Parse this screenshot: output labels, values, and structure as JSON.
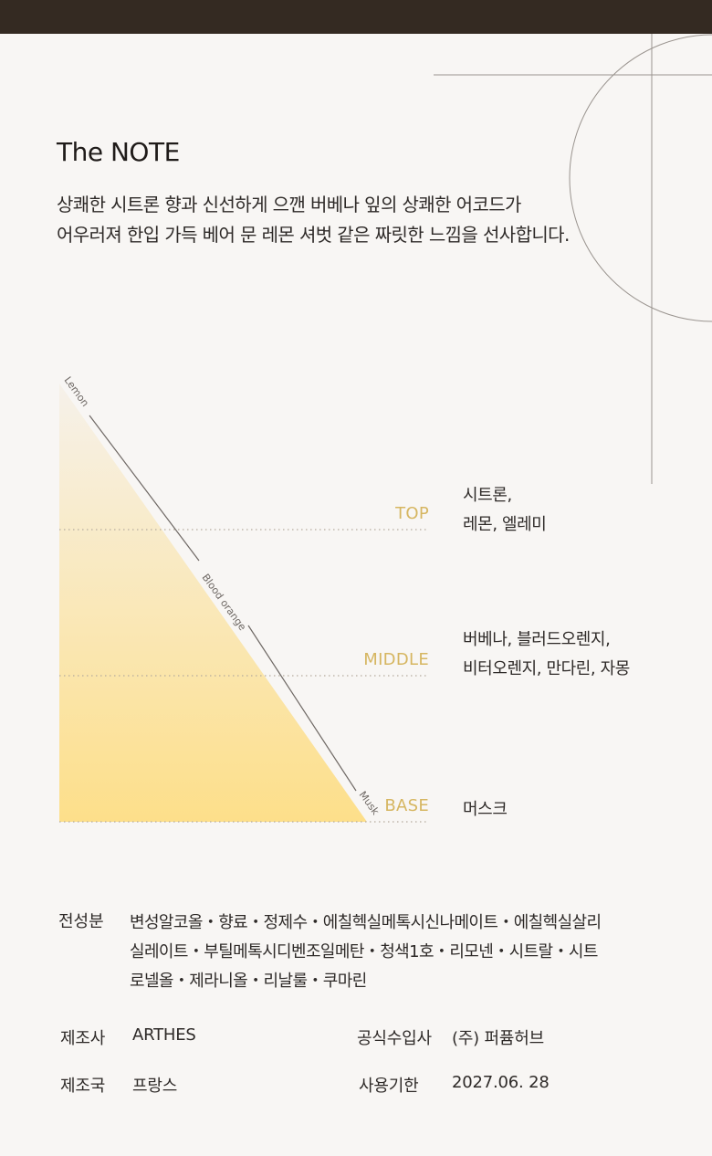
{
  "header": {
    "bar_color": "#342a22"
  },
  "section": {
    "title": "The NOTE",
    "description": [
      "상쾌한 시트론 향과 신선하게 으깬 버베나 잎의 상쾌한 어코드가",
      "어우러져 한입 가득 베어 문 레몬 셔벗 같은 짜릿한 느낌을 선사합니다."
    ]
  },
  "pyramid": {
    "axis_labels": {
      "top": "Lemon",
      "middle": "Blood orange",
      "bottom": "Musk"
    },
    "gradient_colors": {
      "top": "#f6f1ea",
      "bottom": "#fddf8a"
    },
    "label_color": "#d6b661",
    "levels": [
      {
        "label": "TOP",
        "notes": [
          "시트론,",
          "레몬, 엘레미"
        ]
      },
      {
        "label": "MIDDLE",
        "notes": [
          "버베나, 블러드오렌지,",
          "비터오렌지, 만다린, 자몽"
        ]
      },
      {
        "label": "BASE",
        "notes": [
          "머스크"
        ]
      }
    ]
  },
  "ingredients": {
    "label": "전성분",
    "lines": [
      "변성알코올・향료・정제수・에칠헥실메톡시신나메이트・에칠헥실살리",
      "실레이트・부틸메톡시디벤조일메탄・청색1호・리모넨・시트랄・시트",
      "로넬올・제라니올・리날룰・쿠마린"
    ]
  },
  "product_info": {
    "manufacturer_label": "제조사",
    "manufacturer": "ARTHES",
    "importer_label": "공식수입사",
    "importer": "(주) 퍼퓸허브",
    "country_label": "제조국",
    "country": "프랑스",
    "expiry_label": "사용기한",
    "expiry": "2027.06. 28"
  }
}
